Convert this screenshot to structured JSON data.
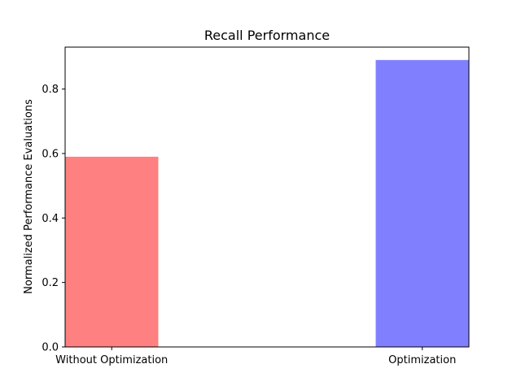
{
  "chart_data": {
    "type": "bar",
    "title": "Recall Performance",
    "xlabel": "",
    "ylabel": "Normalized Performance Evaluations",
    "categories": [
      "Without Optimization",
      "Optimization"
    ],
    "values": [
      0.59,
      0.89
    ],
    "colors": [
      "#ff8080",
      "#8080ff"
    ],
    "ylim": [
      0,
      0.93
    ],
    "yticks": [
      0.0,
      0.2,
      0.4,
      0.6,
      0.8
    ],
    "ytick_labels": [
      "0.0",
      "0.2",
      "0.4",
      "0.6",
      "0.8"
    ],
    "grid": false,
    "legend": "none"
  }
}
